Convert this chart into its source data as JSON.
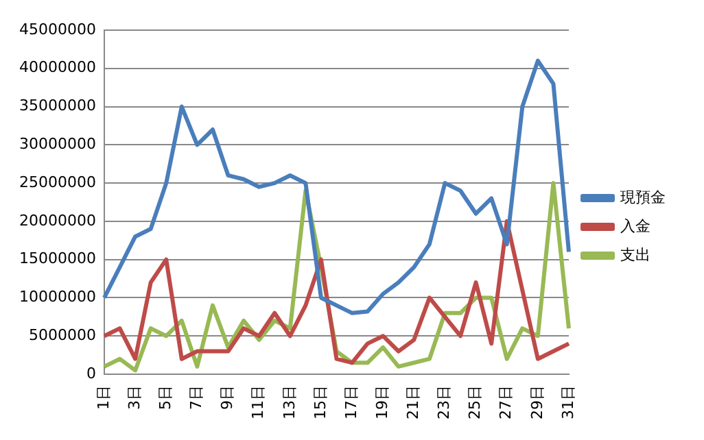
{
  "chart_data": {
    "type": "line",
    "categories": [
      "1日",
      null,
      "3日",
      null,
      "5日",
      null,
      "7日",
      null,
      "9日",
      null,
      "11日",
      null,
      "13日",
      null,
      "15日",
      null,
      "17日",
      null,
      "19日",
      null,
      "21日",
      null,
      "23日",
      null,
      "25日",
      null,
      "27日",
      null,
      "29日",
      null,
      "31日"
    ],
    "series": [
      {
        "name": "現預金",
        "color": "#4a7ebb",
        "values": [
          10000000,
          14000000,
          18000000,
          19000000,
          25000000,
          35000000,
          30000000,
          32000000,
          26000000,
          25500000,
          24500000,
          25000000,
          26000000,
          25000000,
          10000000,
          9000000,
          8000000,
          8200000,
          10500000,
          12000000,
          14000000,
          17000000,
          25000000,
          24000000,
          21000000,
          23000000,
          17000000,
          35000000,
          41000000,
          38000000,
          16000000
        ]
      },
      {
        "name": "入金",
        "color": "#be4b48",
        "values": [
          5000000,
          6000000,
          2000000,
          12000000,
          15000000,
          2000000,
          3000000,
          3000000,
          3000000,
          6000000,
          5000000,
          8000000,
          5000000,
          9000000,
          15000000,
          2000000,
          1500000,
          4000000,
          5000000,
          3000000,
          4500000,
          10000000,
          7500000,
          5000000,
          12000000,
          4000000,
          20000000,
          11000000,
          2000000,
          3000000,
          4000000
        ]
      },
      {
        "name": "支出",
        "color": "#98b954",
        "values": [
          1000000,
          2000000,
          500000,
          6000000,
          5000000,
          7000000,
          1000000,
          9000000,
          3500000,
          7000000,
          4500000,
          7000000,
          6000000,
          24000000,
          14000000,
          3000000,
          1500000,
          1500000,
          3500000,
          1000000,
          1500000,
          2000000,
          8000000,
          8000000,
          10000000,
          10000000,
          2000000,
          6000000,
          5000000,
          25000000,
          6000000
        ]
      }
    ],
    "ylim": [
      0,
      45000000
    ],
    "yticks": [
      0,
      5000000,
      10000000,
      15000000,
      20000000,
      25000000,
      30000000,
      35000000,
      40000000,
      45000000
    ],
    "grid": "y",
    "legend": "right",
    "marker": "none",
    "line_style": "solid"
  }
}
